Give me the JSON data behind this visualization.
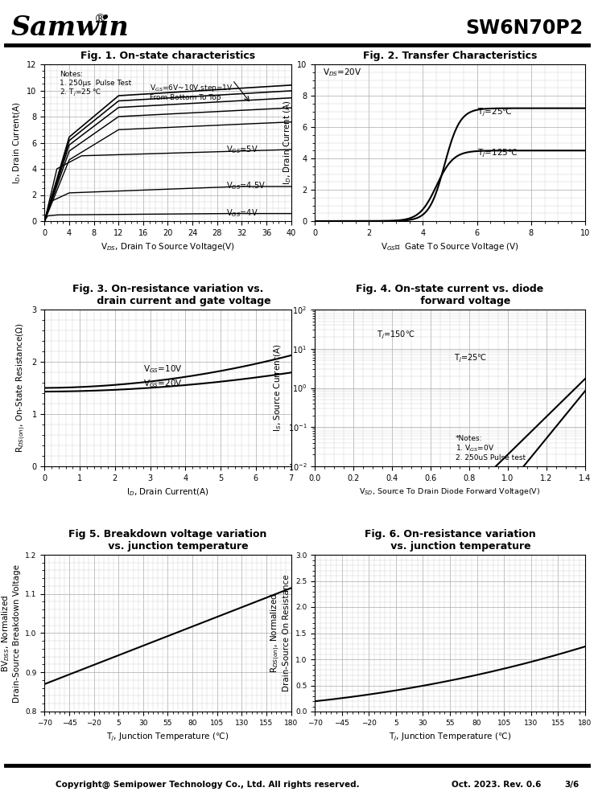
{
  "title_company": "Samwin",
  "title_part": "SW6N70P2",
  "footer_text": "Copyright@ Semipower Technology Co., Ltd. All rights reserved.",
  "footer_right": "Oct. 2023. Rev. 0.6",
  "footer_page": "3/6",
  "fig1_title": "Fig. 1. On-state characteristics",
  "fig1_xlabel": "V$_{DS}$, Drain To Source Voltage(V)",
  "fig1_ylabel": "I$_{D}$, Drain Current(A)",
  "fig1_xlim": [
    0,
    40
  ],
  "fig1_ylim": [
    0,
    12
  ],
  "fig1_xticks": [
    0,
    4,
    8,
    12,
    16,
    20,
    24,
    28,
    32,
    36,
    40
  ],
  "fig1_yticks": [
    0,
    2,
    4,
    6,
    8,
    10,
    12
  ],
  "fig2_title": "Fig. 2. Transfer Characteristics",
  "fig2_xlabel": "V$_{GS}$，  Gate To Source Voltage (V)",
  "fig2_ylabel": "I$_{D}$, Drain Current (A)",
  "fig2_xlim": [
    0,
    10
  ],
  "fig2_ylim": [
    0,
    10
  ],
  "fig2_xticks": [
    0,
    2,
    4,
    6,
    8,
    10
  ],
  "fig2_yticks": [
    0,
    2,
    4,
    6,
    8,
    10
  ],
  "fig3_title": "Fig. 3. On-resistance variation vs.\n         drain current and gate voltage",
  "fig3_xlabel": "I$_{D}$, Drain Current(A)",
  "fig3_ylabel": "R$_{DS(on)}$, On-State Resistance(Ω)",
  "fig3_xlim": [
    0,
    7
  ],
  "fig3_ylim": [
    0,
    3.0
  ],
  "fig3_xticks": [
    0,
    1,
    2,
    3,
    4,
    5,
    6,
    7
  ],
  "fig3_yticks": [
    0.0,
    1.0,
    2.0,
    3.0
  ],
  "fig4_title": "Fig. 4. On-state current vs. diode\n         forward voltage",
  "fig4_xlabel": "V$_{SD}$, Source To Drain Diode Forward Voltage(V)",
  "fig4_ylabel": "I$_{S}$, Source Current(A)",
  "fig4_xlim": [
    0.0,
    1.4
  ],
  "fig4_xticks": [
    0.0,
    0.2,
    0.4,
    0.6,
    0.8,
    1.0,
    1.2,
    1.4
  ],
  "fig5_title": "Fig 5. Breakdown voltage variation\n      vs. junction temperature",
  "fig5_xlabel": "T$_{j}$, Junction Temperature (℃)",
  "fig5_ylabel": "BV$_{DSS}$, Normalized\nDrain-Source Breakdown Voltage",
  "fig5_xlim": [
    -70,
    180
  ],
  "fig5_ylim": [
    0.8,
    1.2
  ],
  "fig5_xticks": [
    -70,
    -45,
    -20,
    5,
    30,
    55,
    80,
    105,
    130,
    155,
    180
  ],
  "fig5_yticks": [
    0.8,
    0.9,
    1.0,
    1.1,
    1.2
  ],
  "fig6_title": "Fig. 6. On-resistance variation\n      vs. junction temperature",
  "fig6_xlabel": "T$_{j}$, Junction Temperature (℃)",
  "fig6_ylabel": "R$_{DS(on)}$, Normalized\nDrain-Source On Resistance",
  "fig6_xlim": [
    -70,
    180
  ],
  "fig6_ylim": [
    0.0,
    3.0
  ],
  "fig6_xticks": [
    -70,
    -45,
    -20,
    5,
    30,
    55,
    80,
    105,
    130,
    155,
    180
  ],
  "fig6_yticks": [
    0.0,
    0.5,
    1.0,
    1.5,
    2.0,
    2.5,
    3.0
  ]
}
